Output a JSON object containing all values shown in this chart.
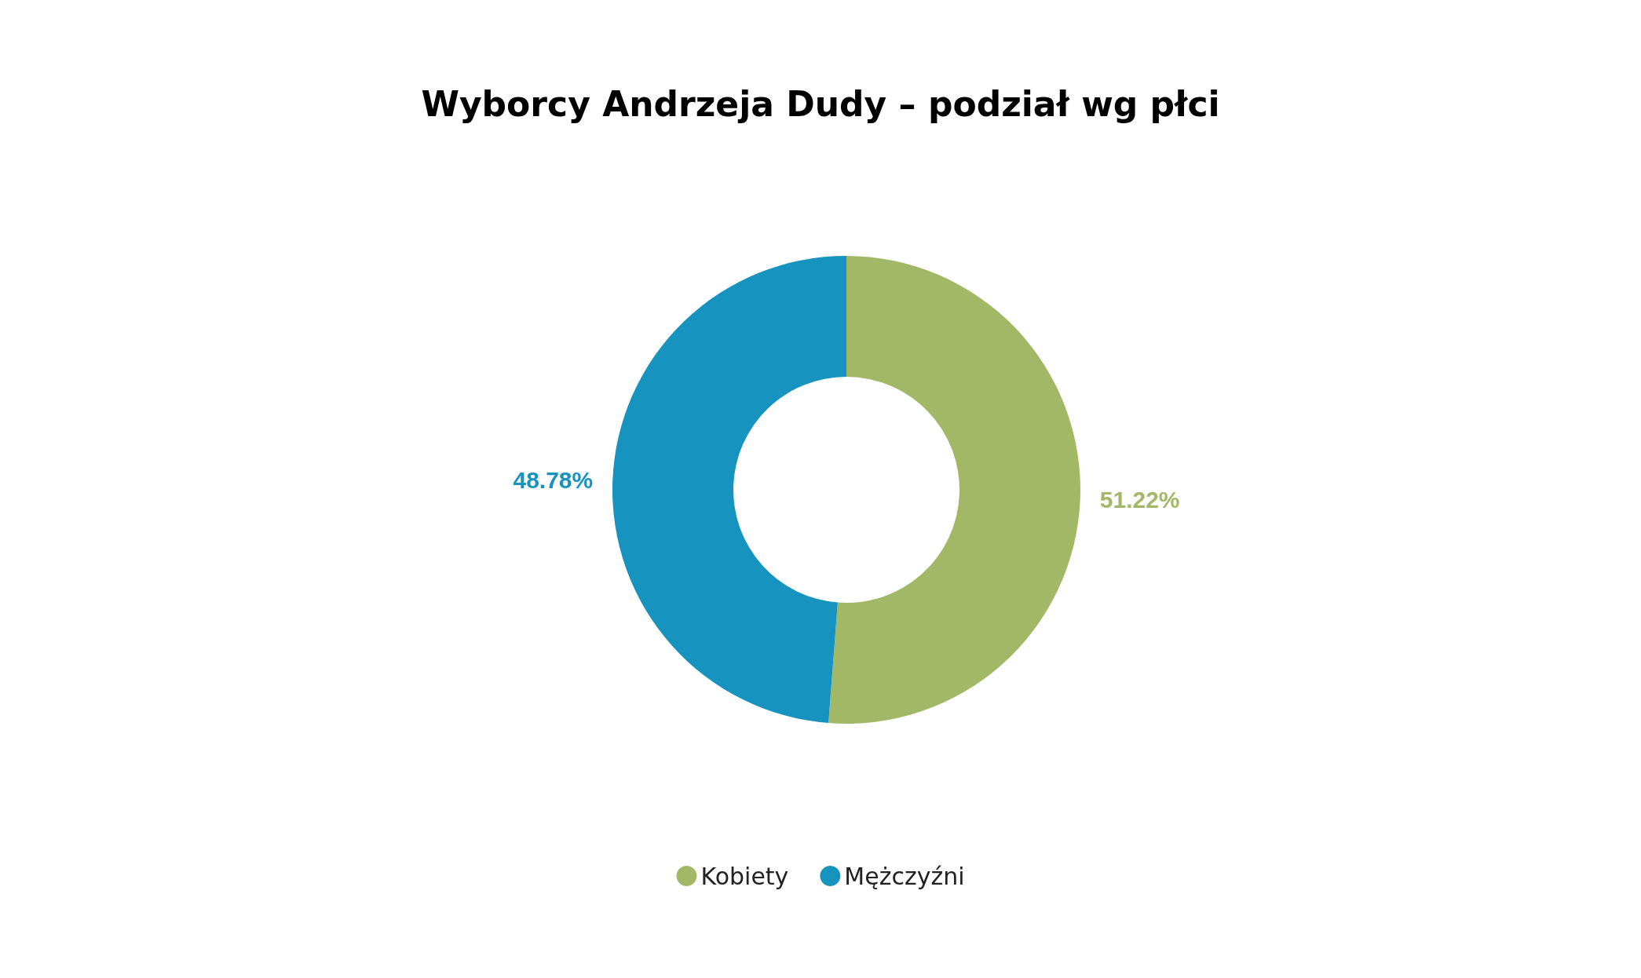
{
  "chart_data": {
    "type": "donut",
    "title": "Wyborcy Andrzeja Dudy – podział wg płci",
    "categories": [
      "Kobiety",
      "Mężczyźni"
    ],
    "values": [
      51.22,
      48.78
    ],
    "colors": [
      "#a3b866",
      "#1793bf"
    ],
    "value_labels": [
      "51.22%",
      "48.78%"
    ],
    "legend": "bottom"
  }
}
